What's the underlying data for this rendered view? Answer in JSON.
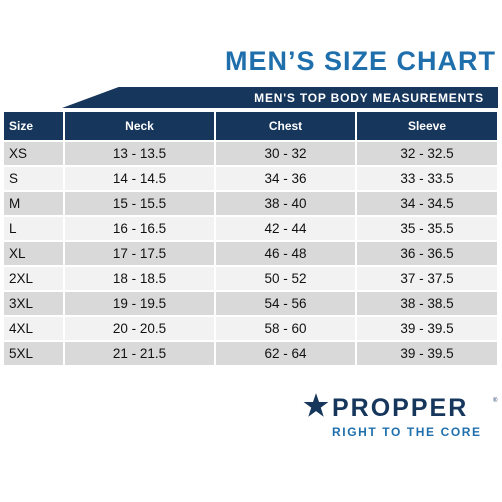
{
  "title": "MEN’S SIZE CHART",
  "banner": "MEN'S TOP BODY MEASUREMENTS",
  "table": {
    "headers": [
      "Size",
      "Neck",
      "Chest",
      "Sleeve"
    ],
    "rows": [
      [
        "XS",
        "13 - 13.5",
        "30 - 32",
        "32 - 32.5"
      ],
      [
        "S",
        "14 - 14.5",
        "34 - 36",
        "33 - 33.5"
      ],
      [
        "M",
        "15 - 15.5",
        "38 - 40",
        "34 - 34.5"
      ],
      [
        "L",
        "16 - 16.5",
        "42 - 44",
        "35 - 35.5"
      ],
      [
        "XL",
        "17 - 17.5",
        "46 - 48",
        "36 - 36.5"
      ],
      [
        "2XL",
        "18 - 18.5",
        "50 - 52",
        "37 - 37.5"
      ],
      [
        "3XL",
        "19 - 19.5",
        "54 - 56",
        "38 - 38.5"
      ],
      [
        "4XL",
        "20 - 20.5",
        "58 - 60",
        "39 - 39.5"
      ],
      [
        "5XL",
        "21 - 21.5",
        "62 - 64",
        "39 - 39.5"
      ]
    ]
  },
  "logo": {
    "brand": "PROPPER",
    "registered": "®",
    "tagline": "RIGHT TO THE CORE",
    "icon": "star-icon"
  },
  "colors": {
    "navy": "#16365c",
    "blue": "#1f6fad",
    "row_dark": "#d9d9da",
    "row_light": "#f2f2f2"
  }
}
